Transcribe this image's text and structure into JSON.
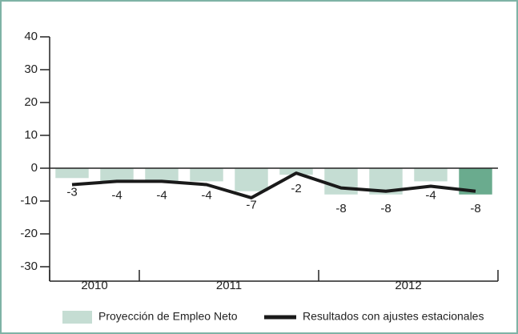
{
  "chart_data": {
    "type": "bar",
    "categories": [
      "2010",
      null,
      "2011",
      null,
      null,
      null,
      "2012",
      null,
      null,
      null
    ],
    "series": [
      {
        "name": "Proyección de Empleo Neto",
        "type": "bar",
        "color": "#c5ddd3",
        "colors": [
          "#c5ddd3",
          "#c5ddd3",
          "#c5ddd3",
          "#c5ddd3",
          "#c5ddd3",
          "#c5ddd3",
          "#c5ddd3",
          "#c5ddd3",
          "#c5ddd3",
          "#6aab8e"
        ],
        "values": [
          -3,
          -4,
          -4,
          -4,
          -7,
          -2,
          -8,
          -8,
          -4,
          -8
        ]
      },
      {
        "name": "Resultados con ajustes estacionales",
        "type": "line",
        "color": "#1a1a1a",
        "values": [
          -5,
          -4,
          -4,
          -5,
          -9,
          -1.5,
          -6,
          -7,
          -5.5,
          -7
        ]
      }
    ],
    "ylim": [
      -30,
      40
    ],
    "yticks": [
      -30,
      -20,
      -10,
      0,
      10,
      20,
      30,
      40
    ],
    "legend": "bottom"
  }
}
